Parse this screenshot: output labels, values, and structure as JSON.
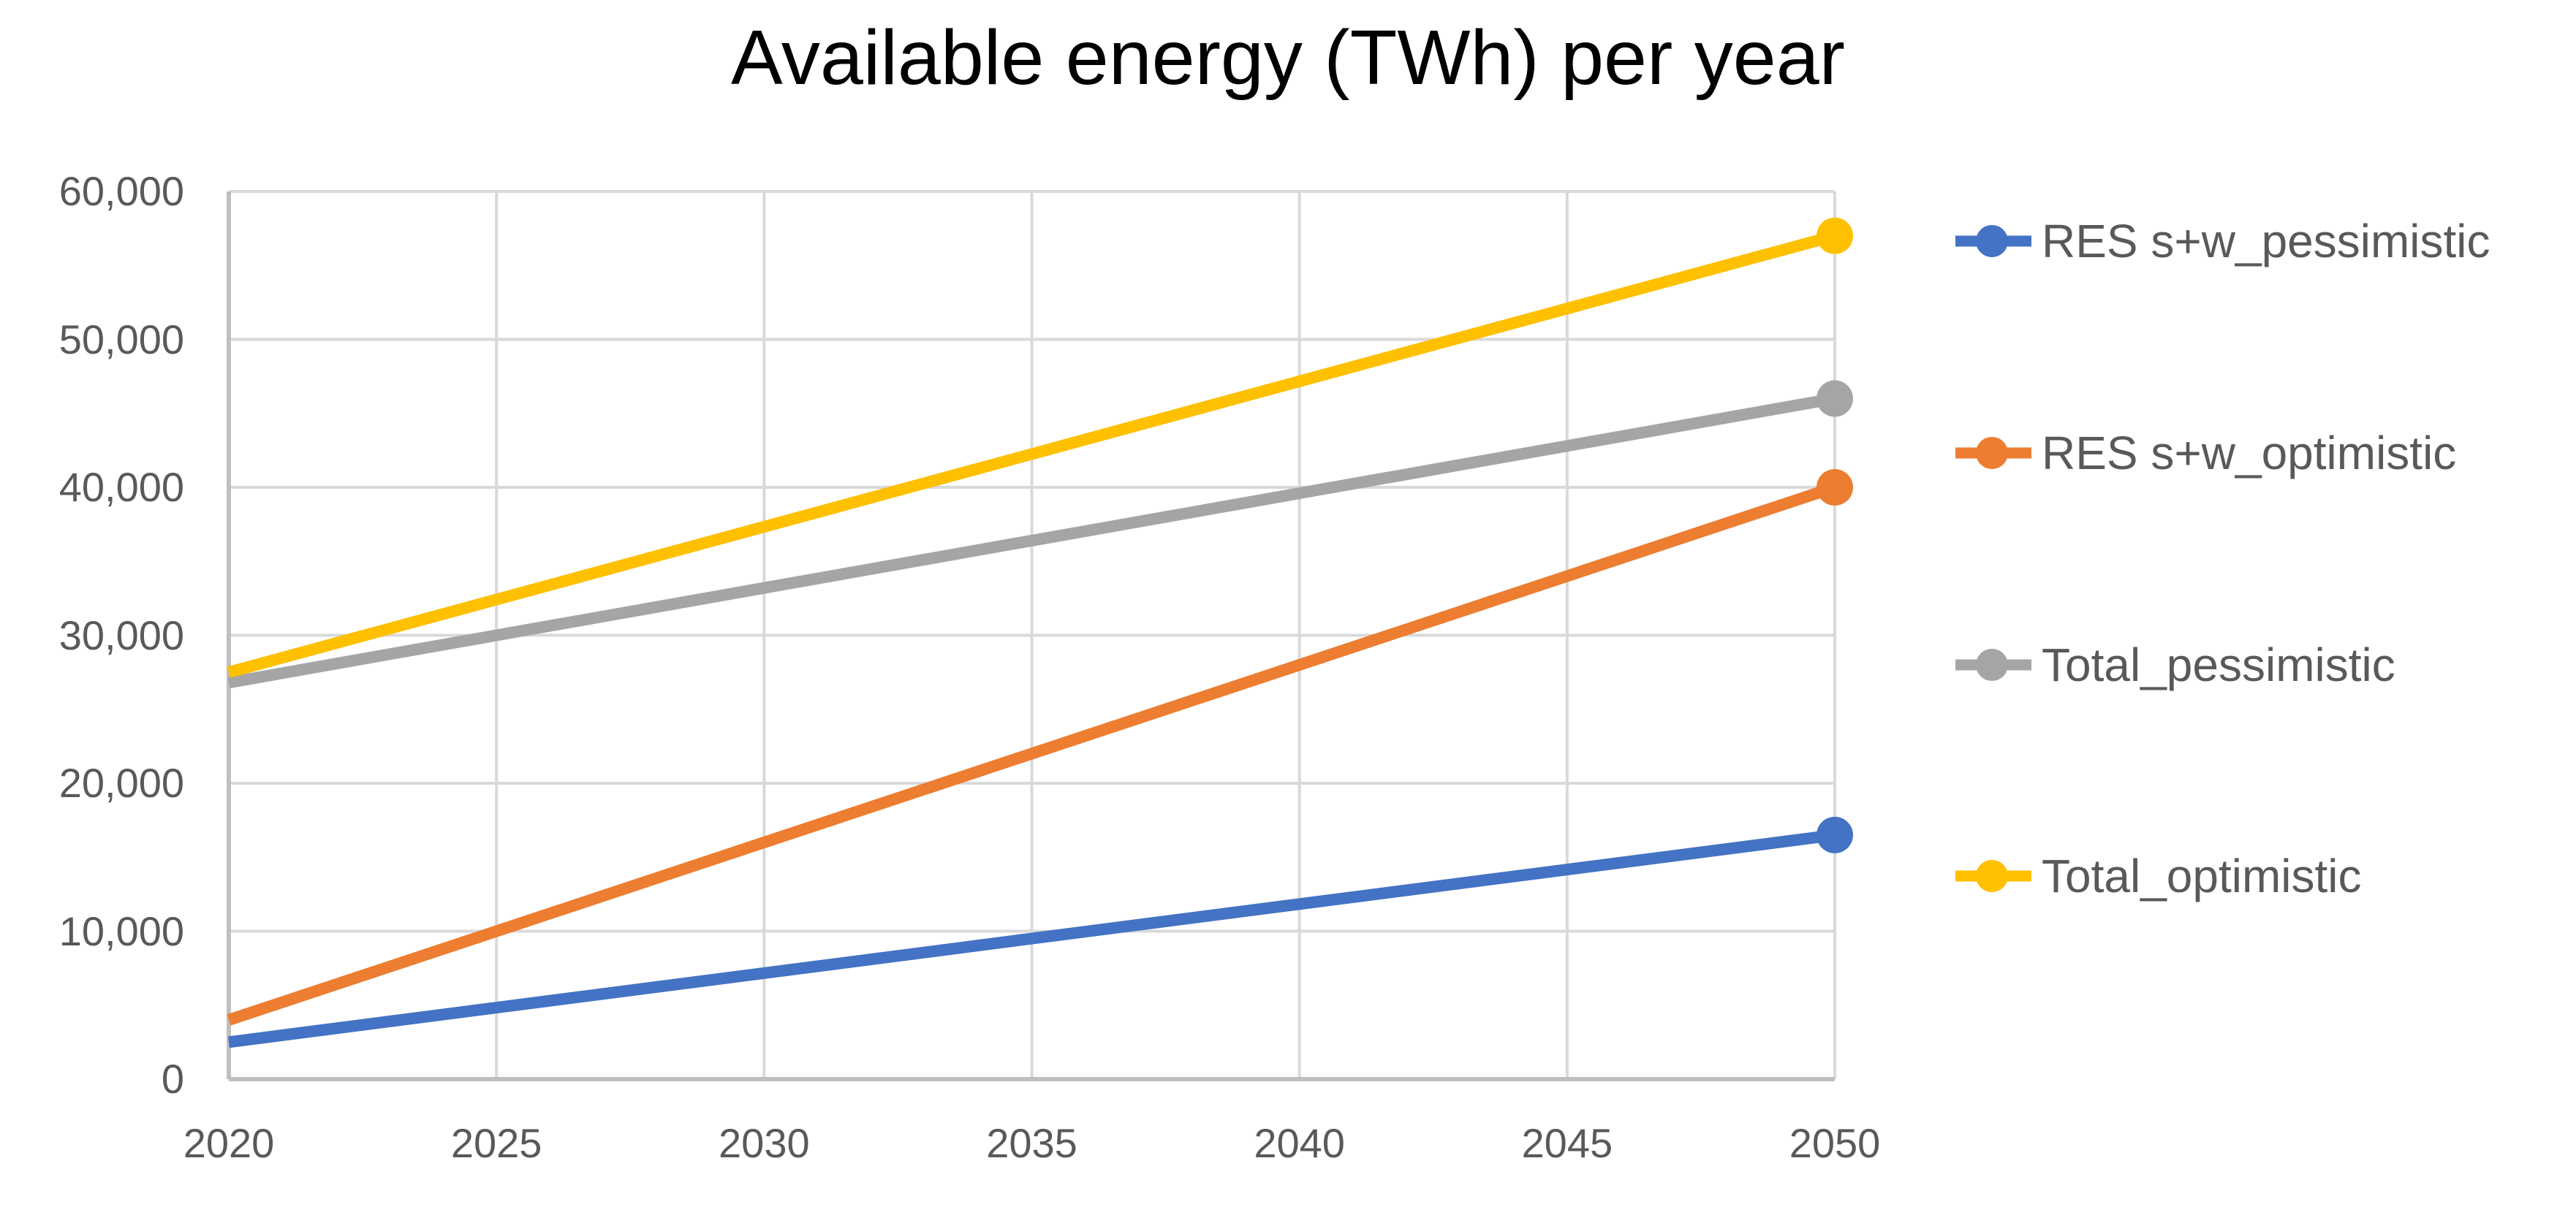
{
  "chart_data": {
    "type": "line",
    "title": "Available energy (TWh) per year",
    "x": [
      2020,
      2050
    ],
    "x_tick_labels": [
      "2020",
      "2025",
      "2030",
      "2035",
      "2040",
      "2045",
      "2050"
    ],
    "y_tick_labels": [
      "0",
      "10,000",
      "20,000",
      "30,000",
      "40,000",
      "50,000",
      "60,000"
    ],
    "xlim": [
      2020,
      2050
    ],
    "ylim": [
      0,
      60000
    ],
    "grid": true,
    "legend_position": "right",
    "markers": "end-point-only",
    "series": [
      {
        "name": "RES s+w_pessimistic",
        "color": "#4472C4",
        "values": [
          2500,
          16500
        ]
      },
      {
        "name": "RES s+w_optimistic",
        "color": "#ED7D31",
        "values": [
          4000,
          40000
        ]
      },
      {
        "name": "Total_pessimistic",
        "color": "#A5A5A5",
        "values": [
          26800,
          46000
        ]
      },
      {
        "name": "Total_optimistic",
        "color": "#FFC000",
        "values": [
          27500,
          57000
        ]
      }
    ],
    "colors": {
      "gridline": "#D9D9D9",
      "axis_line": "#BFBFBF",
      "tick_label": "#595959",
      "legend_label": "#595959",
      "title": "#000000",
      "background": "#FFFFFF"
    }
  }
}
